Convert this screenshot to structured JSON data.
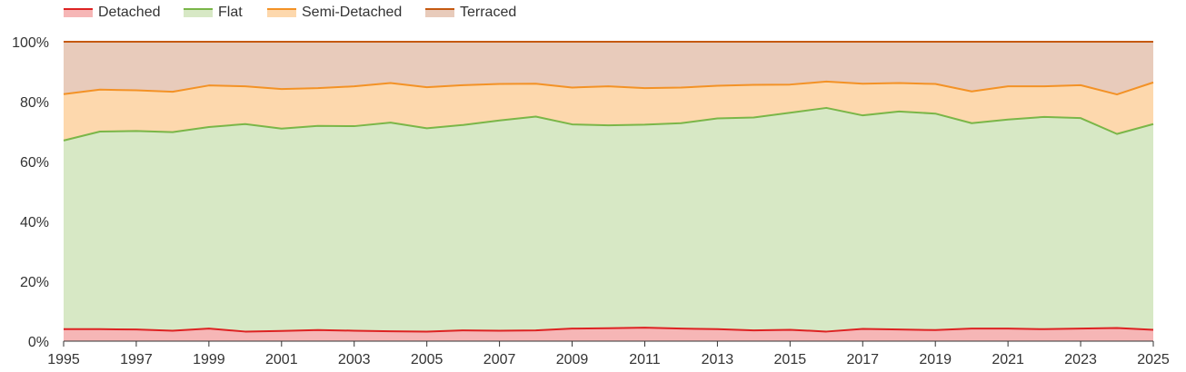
{
  "chart_data": {
    "type": "area",
    "stacked": true,
    "percent": true,
    "x": [
      1995,
      1996,
      1997,
      1998,
      1999,
      2000,
      2001,
      2002,
      2003,
      2004,
      2005,
      2006,
      2007,
      2008,
      2009,
      2010,
      2011,
      2012,
      2013,
      2014,
      2015,
      2016,
      2017,
      2018,
      2019,
      2020,
      2021,
      2022,
      2023,
      2024,
      2025
    ],
    "x_tick_labels": [
      "1995",
      "1997",
      "1999",
      "2001",
      "2003",
      "2005",
      "2007",
      "2009",
      "2011",
      "2013",
      "2015",
      "2017",
      "2019",
      "2021",
      "2023",
      "2025"
    ],
    "y_tick_labels": [
      "0%",
      "20%",
      "40%",
      "60%",
      "80%",
      "100%"
    ],
    "ylim": [
      0,
      100
    ],
    "grid": true,
    "legend_position": "top-left",
    "series": [
      {
        "name": "Detached",
        "line_color": "#dd2222",
        "fill_color": "#f6b6b6",
        "values": [
          4.0,
          4.0,
          3.9,
          3.5,
          4.2,
          3.2,
          3.4,
          3.7,
          3.5,
          3.3,
          3.2,
          3.6,
          3.5,
          3.6,
          4.2,
          4.3,
          4.5,
          4.2,
          4.0,
          3.6,
          3.8,
          3.2,
          4.1,
          3.9,
          3.7,
          4.2,
          4.2,
          4.0,
          4.2,
          4.4,
          3.8
        ]
      },
      {
        "name": "Flat",
        "line_color": "#7ab648",
        "fill_color": "#d7e8c5",
        "values": [
          63.0,
          66.0,
          66.3,
          66.3,
          67.3,
          69.3,
          67.6,
          68.2,
          68.3,
          69.7,
          67.9,
          68.6,
          70.2,
          71.4,
          68.2,
          67.8,
          67.8,
          68.6,
          70.4,
          71.1,
          72.5,
          74.7,
          71.3,
          72.8,
          72.3,
          68.6,
          69.8,
          70.9,
          70.3,
          64.8,
          68.7
        ]
      },
      {
        "name": "Semi-Detached",
        "line_color": "#f39226",
        "fill_color": "#fdd8ad",
        "values": [
          15.5,
          14.0,
          13.6,
          13.5,
          13.9,
          12.6,
          13.2,
          12.6,
          13.3,
          13.2,
          13.7,
          13.3,
          12.2,
          11.0,
          12.3,
          13.0,
          12.2,
          11.9,
          10.9,
          10.9,
          9.4,
          8.8,
          10.6,
          9.5,
          9.9,
          10.6,
          11.1,
          10.2,
          11.0,
          13.2,
          13.9
        ]
      },
      {
        "name": "Terraced",
        "line_color": "#c55a11",
        "fill_color": "#e8cbbb",
        "values": [
          17.5,
          16.0,
          16.2,
          16.7,
          14.6,
          14.9,
          15.8,
          15.5,
          14.9,
          13.8,
          15.2,
          14.5,
          14.1,
          14.0,
          15.3,
          14.9,
          15.5,
          15.3,
          14.7,
          14.4,
          14.3,
          13.3,
          14.0,
          13.8,
          14.1,
          16.6,
          14.9,
          14.9,
          14.5,
          17.6,
          13.6
        ]
      }
    ]
  }
}
